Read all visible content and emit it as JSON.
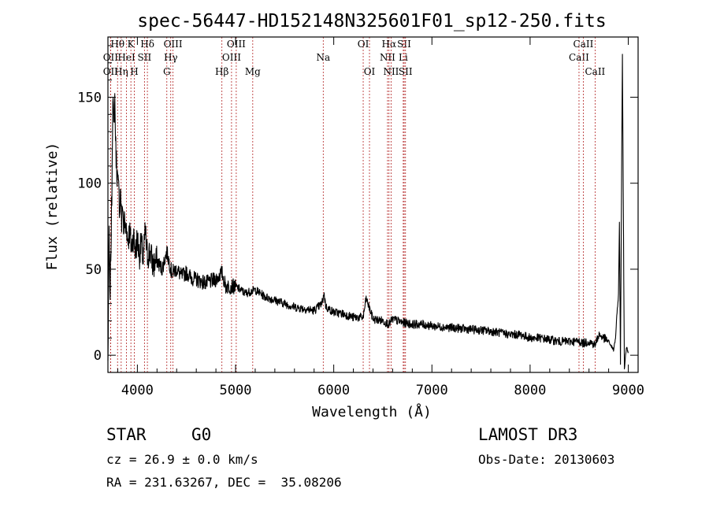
{
  "chart_data": {
    "type": "line",
    "title": "spec-56447-HD152148N325601F01_sp12-250.fits",
    "xlabel": "Wavelength (Å)",
    "ylabel": "Flux (relative)",
    "xlim": [
      3700,
      9100
    ],
    "ylim": [
      -10,
      185
    ],
    "xticks": [
      4000,
      5000,
      6000,
      7000,
      8000,
      9000
    ],
    "yticks": [
      0,
      50,
      100,
      150
    ],
    "series": [
      {
        "name": "spectrum",
        "x": [
          3700,
          3712,
          3720,
          3730,
          3740,
          3750,
          3760,
          3770,
          3780,
          3790,
          3800,
          3810,
          3820,
          3830,
          3840,
          3850,
          3860,
          3870,
          3880,
          3890,
          3900,
          3920,
          3940,
          3960,
          3980,
          4000,
          4020,
          4040,
          4060,
          4080,
          4100,
          4130,
          4160,
          4200,
          4250,
          4300,
          4350,
          4400,
          4450,
          4500,
          4550,
          4600,
          4700,
          4800,
          4860,
          4900,
          5000,
          5100,
          5200,
          5300,
          5400,
          5500,
          5600,
          5700,
          5800,
          5880,
          5900,
          5920,
          6000,
          6100,
          6200,
          6300,
          6330,
          6400,
          6500,
          6563,
          6600,
          6700,
          6800,
          6900,
          7000,
          7200,
          7400,
          7600,
          7700,
          7800,
          7900,
          8000,
          8100,
          8200,
          8300,
          8400,
          8500,
          8542,
          8600,
          8662,
          8700,
          8800,
          8830,
          8850,
          8870,
          8880,
          8900,
          8910,
          8920,
          8940,
          8960,
          8980,
          9000
        ],
        "y": [
          -5,
          72,
          30,
          60,
          95,
          155,
          130,
          150,
          120,
          110,
          100,
          95,
          85,
          98,
          75,
          90,
          72,
          80,
          70,
          78,
          66,
          72,
          62,
          70,
          60,
          68,
          58,
          65,
          55,
          72,
          58,
          60,
          52,
          55,
          50,
          60,
          48,
          50,
          46,
          48,
          45,
          44,
          42,
          44,
          48,
          40,
          40,
          36,
          38,
          34,
          32,
          30,
          28,
          27,
          26,
          30,
          36,
          28,
          25,
          24,
          22,
          22,
          33,
          21,
          20,
          18,
          21,
          19,
          18,
          18,
          17,
          16,
          15,
          14,
          13,
          12,
          12,
          10,
          10,
          9,
          8,
          8,
          8,
          7,
          8,
          6,
          12,
          8,
          5,
          3,
          10,
          20,
          35,
          78,
          -6,
          175,
          -8,
          5,
          2
        ]
      }
    ],
    "annotations": {
      "lines": [
        {
          "wavelength": 3727,
          "row": 1,
          "label": "OII"
        },
        {
          "wavelength": 3727,
          "row": 2,
          "label": "OII"
        },
        {
          "wavelength": 3798,
          "row": 0,
          "label": "Hθ"
        },
        {
          "wavelength": 3835,
          "row": 2,
          "label": "Hη"
        },
        {
          "wavelength": 3889,
          "row": 1,
          "label": "HeI"
        },
        {
          "wavelength": 3934,
          "row": 0,
          "label": "K"
        },
        {
          "wavelength": 3969,
          "row": 2,
          "label": "H"
        },
        {
          "wavelength": 4072,
          "row": 1,
          "label": "SII"
        },
        {
          "wavelength": 4102,
          "row": 0,
          "label": "Hδ"
        },
        {
          "wavelength": 4300,
          "row": 2,
          "label": "G"
        },
        {
          "wavelength": 4340,
          "row": 1,
          "label": "Hγ"
        },
        {
          "wavelength": 4363,
          "row": 0,
          "label": "OIII"
        },
        {
          "wavelength": 4861,
          "row": 2,
          "label": "Hβ"
        },
        {
          "wavelength": 4959,
          "row": 1,
          "label": "OIII"
        },
        {
          "wavelength": 5007,
          "row": 0,
          "label": "OIII"
        },
        {
          "wavelength": 5175,
          "row": 2,
          "label": "Mg"
        },
        {
          "wavelength": 5893,
          "row": 1,
          "label": "Na"
        },
        {
          "wavelength": 6300,
          "row": 0,
          "label": "OI"
        },
        {
          "wavelength": 6364,
          "row": 2,
          "label": "OI"
        },
        {
          "wavelength": 6548,
          "row": 1,
          "label": "NII"
        },
        {
          "wavelength": 6563,
          "row": 0,
          "label": "Hα"
        },
        {
          "wavelength": 6584,
          "row": 2,
          "label": "NII"
        },
        {
          "wavelength": 6708,
          "row": 1,
          "label": "Li"
        },
        {
          "wavelength": 6717,
          "row": 0,
          "label": "SII"
        },
        {
          "wavelength": 6731,
          "row": 2,
          "label": "SII"
        },
        {
          "wavelength": 8498,
          "row": 1,
          "label": "CaII"
        },
        {
          "wavelength": 8542,
          "row": 0,
          "label": "CaII"
        },
        {
          "wavelength": 8662,
          "row": 2,
          "label": "CaII"
        }
      ]
    }
  },
  "info": {
    "object_class": "STAR",
    "subclass": "G0",
    "survey": "LAMOST DR3",
    "redshift": "cz = 26.9 ± 0.0 km/s",
    "obs_date": "Obs-Date: 20130603",
    "coords": "RA = 231.63267, DEC =  35.08206"
  },
  "colors": {
    "line_marker": "#b22222",
    "spectrum": "#000000"
  }
}
